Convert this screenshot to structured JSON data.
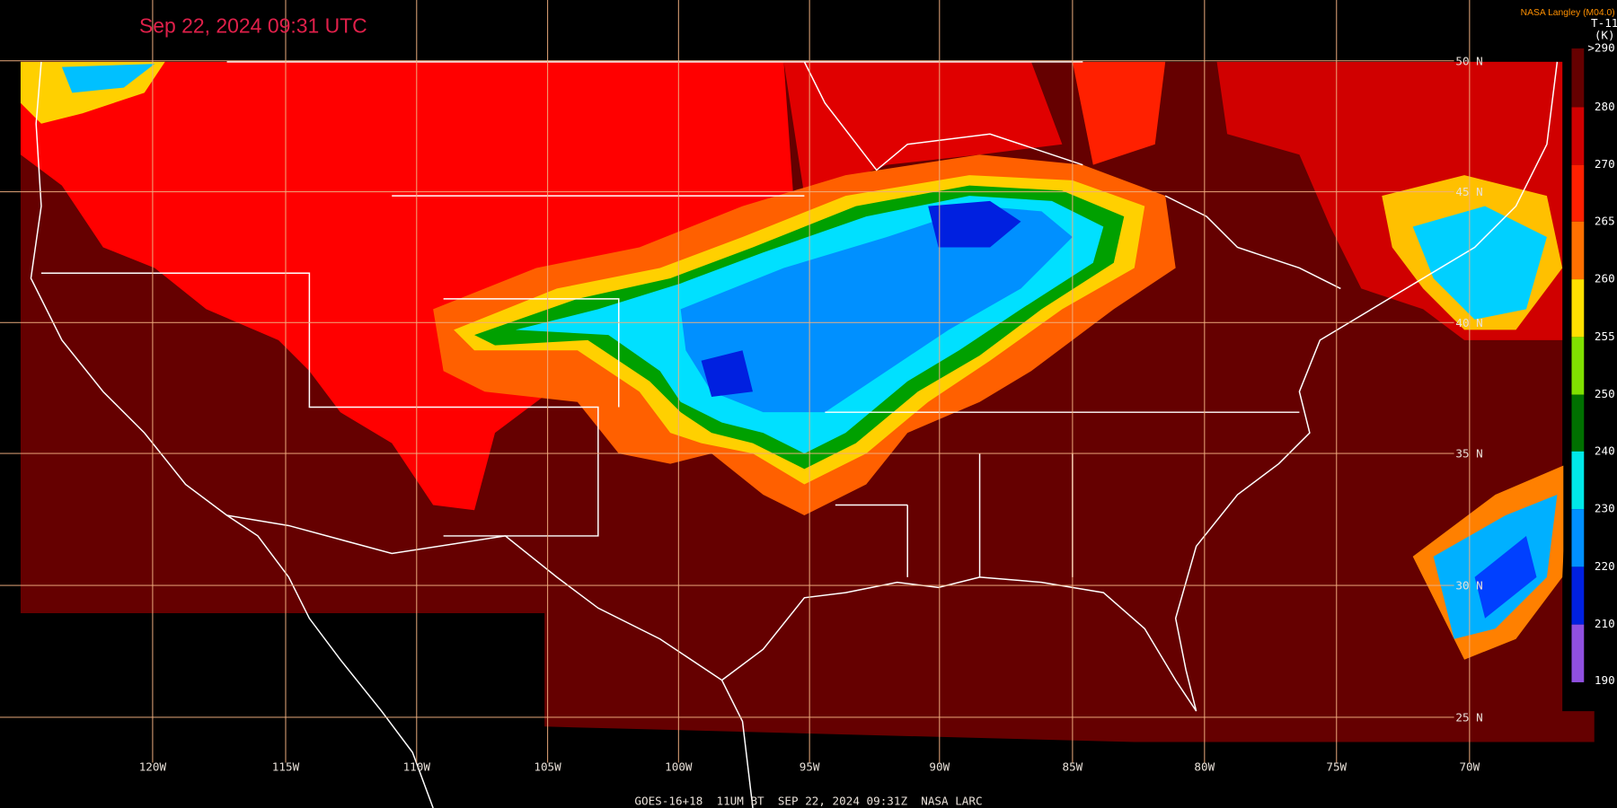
{
  "header": {
    "timestamp": "Sep 22, 2024 09:31 UTC",
    "source": "NASA Langley (M04.0)"
  },
  "legend": {
    "title": "T-11",
    "units": "(K)",
    "labels": [
      ">290",
      "280",
      "270",
      "265",
      "260",
      "255",
      "250",
      "240",
      "230",
      "220",
      "210",
      "190"
    ]
  },
  "longitudes": [
    "120W",
    "115W",
    "110W",
    "105W",
    "100W",
    "95W",
    "90W",
    "85W",
    "80W",
    "75W",
    "70W"
  ],
  "latitudes": [
    "50 N",
    "45 N",
    "40 N",
    "35 N",
    "30 N",
    "25 N"
  ],
  "footer": "GOES-16+18  11UM BT  SEP 22, 2024 09:31Z  NASA LARC"
}
